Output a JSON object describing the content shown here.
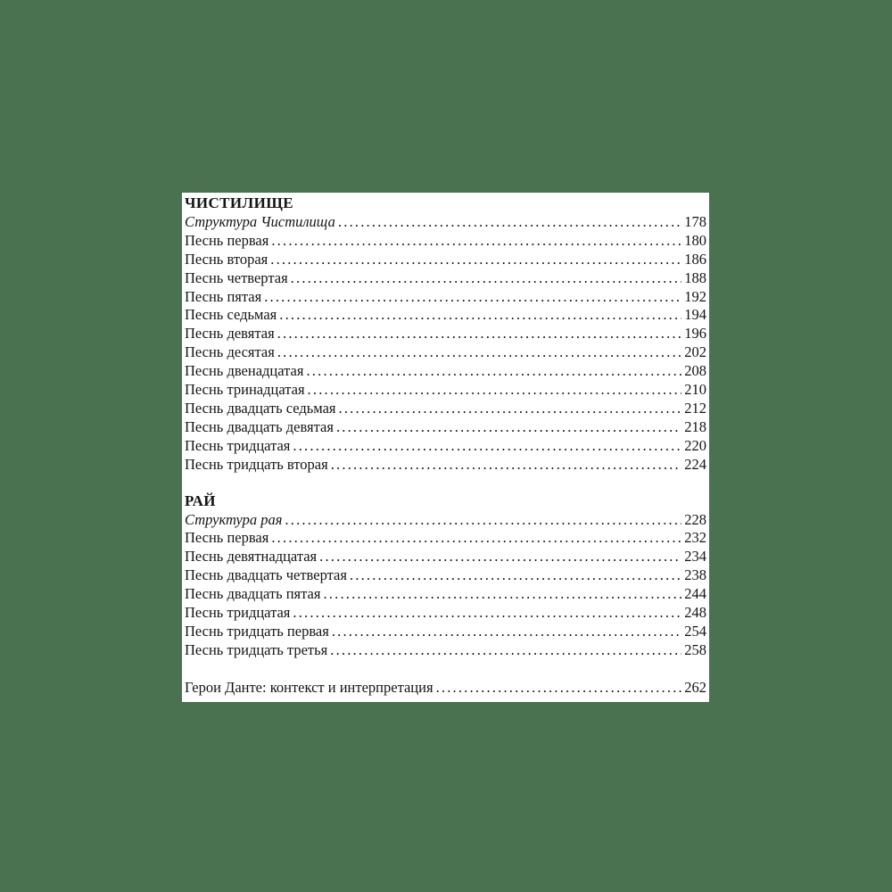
{
  "colors": {
    "background": "#4a7251",
    "paper": "#ffffff",
    "text": "#141414"
  },
  "toc": {
    "sections": [
      {
        "header": "ЧИСТИЛИЩЕ",
        "items": [
          {
            "label": "Структура Чистилища",
            "page": "178"
          },
          {
            "label": "Песнь первая",
            "page": "180"
          },
          {
            "label": "Песнь вторая",
            "page": "186"
          },
          {
            "label": "Песнь четвертая",
            "page": "188"
          },
          {
            "label": "Песнь пятая",
            "page": "192"
          },
          {
            "label": "Песнь седьмая",
            "page": "194"
          },
          {
            "label": "Песнь девятая",
            "page": "196"
          },
          {
            "label": "Песнь десятая",
            "page": "202"
          },
          {
            "label": "Песнь двенадцатая",
            "page": "208"
          },
          {
            "label": "Песнь тринадцатая",
            "page": "210"
          },
          {
            "label": "Песнь двадцать седьмая",
            "page": "212"
          },
          {
            "label": "Песнь двадцать девятая",
            "page": "218"
          },
          {
            "label": "Песнь тридцатая",
            "page": "220"
          },
          {
            "label": "Песнь тридцать вторая",
            "page": "224"
          }
        ]
      },
      {
        "header": "РАЙ",
        "items": [
          {
            "label": "Структура рая",
            "page": "228"
          },
          {
            "label": "Песнь первая",
            "page": "232"
          },
          {
            "label": "Песнь девятнадцатая",
            "page": "234"
          },
          {
            "label": "Песнь двадцать четвертая",
            "page": "238"
          },
          {
            "label": "Песнь двадцать пятая",
            "page": "244"
          },
          {
            "label": "Песнь тридцатая",
            "page": "248"
          },
          {
            "label": "Песнь тридцать первая",
            "page": "254"
          },
          {
            "label": "Песнь тридцать третья",
            "page": "258"
          }
        ]
      }
    ],
    "footer_item": {
      "label": "Герои Данте: контекст и интерпретация",
      "page": "262"
    }
  }
}
